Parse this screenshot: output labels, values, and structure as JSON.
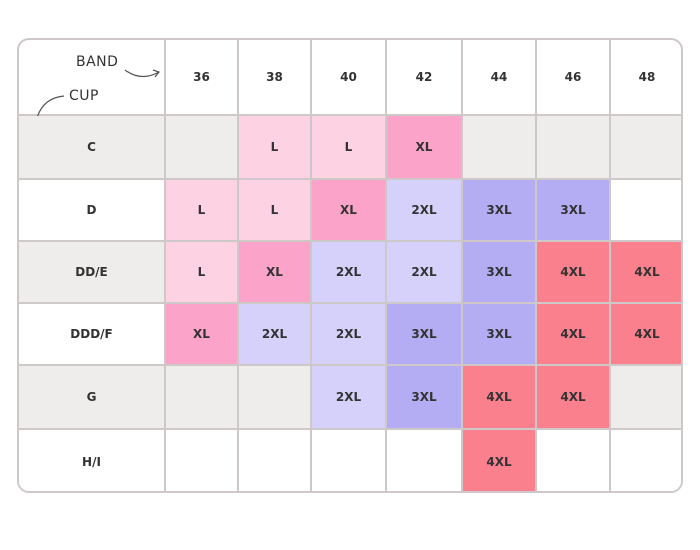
{
  "header": {
    "band": "BAND",
    "cup": "CUP"
  },
  "columns": [
    "36",
    "38",
    "40",
    "42",
    "44",
    "46",
    "48"
  ],
  "rows": [
    {
      "label": "C",
      "shaded": true,
      "cells": [
        null,
        "L",
        "L",
        "XL",
        null,
        null,
        null
      ]
    },
    {
      "label": "D",
      "shaded": false,
      "cells": [
        "L",
        "L",
        "XL",
        "2XL",
        "3XL",
        "3XL",
        null
      ]
    },
    {
      "label": "DD/E",
      "shaded": true,
      "cells": [
        "L",
        "XL",
        "2XL",
        "2XL",
        "3XL",
        "4XL",
        "4XL"
      ]
    },
    {
      "label": "DDD/F",
      "shaded": false,
      "cells": [
        "XL",
        "2XL",
        "2XL",
        "3XL",
        "3XL",
        "4XL",
        "4XL"
      ]
    },
    {
      "label": "G",
      "shaded": true,
      "cells": [
        null,
        null,
        "2XL",
        "3XL",
        "4XL",
        "4XL",
        null
      ]
    },
    {
      "label": "H/I",
      "shaded": false,
      "cells": [
        null,
        null,
        null,
        null,
        "4XL",
        null,
        null
      ]
    }
  ],
  "size_colors": {
    "L": "#fdd3e3",
    "XL": "#fca3c9",
    "2XL": "#d6d1fb",
    "3XL": "#b5adf3",
    "4XL": "#fb808d"
  },
  "shade_color": "#efedeb"
}
